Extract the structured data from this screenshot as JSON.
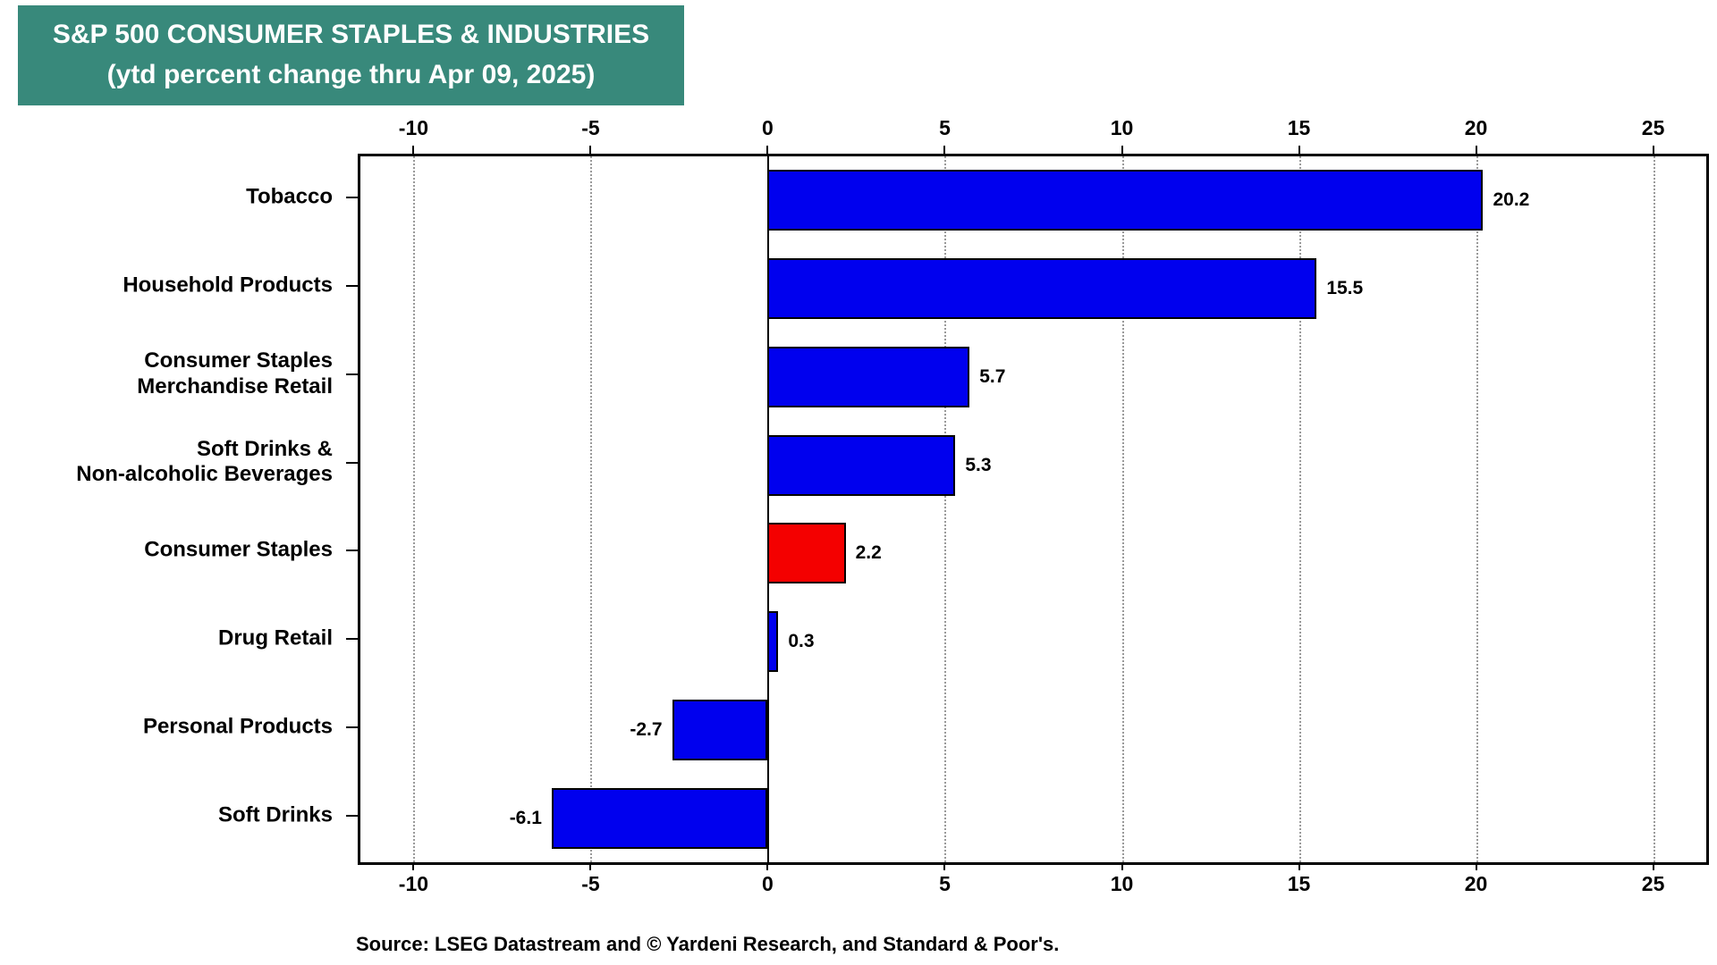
{
  "title": {
    "line1": "S&P 500 CONSUMER STAPLES & INDUSTRIES",
    "line2": "(ytd percent change thru Apr 09, 2025)"
  },
  "source": "Source: LSEG Datastream and © Yardeni Research, and Standard & Poor's.",
  "chart_data": {
    "type": "bar",
    "orientation": "horizontal",
    "title": "S&P 500 CONSUMER STAPLES & INDUSTRIES (ytd percent change thru Apr 09, 2025)",
    "categories": [
      "Tobacco",
      "Household Products",
      "Consumer Staples Merchandise Retail",
      "Soft Drinks & Non-alcoholic Beverages",
      "Consumer Staples",
      "Drug Retail",
      "Personal Products",
      "Soft Drinks"
    ],
    "category_lines": [
      [
        "Tobacco"
      ],
      [
        "Household Products"
      ],
      [
        "Consumer Staples",
        "Merchandise Retail"
      ],
      [
        "Soft Drinks &",
        "Non-alcoholic Beverages"
      ],
      [
        "Consumer Staples"
      ],
      [
        "Drug Retail"
      ],
      [
        "Personal Products"
      ],
      [
        "Soft Drinks"
      ]
    ],
    "values": [
      20.2,
      15.5,
      5.7,
      5.3,
      2.2,
      0.3,
      -2.7,
      -6.1
    ],
    "value_labels": [
      "20.2",
      "15.5",
      "5.7",
      "5.3",
      "2.2",
      "0.3",
      "-2.7",
      "-6.1"
    ],
    "bar_colors": [
      "#0000EE",
      "#0000EE",
      "#0000EE",
      "#0000EE",
      "#F40000",
      "#0000EE",
      "#0000EE",
      "#0000EE"
    ],
    "xlim": [
      -11.5,
      26.5
    ],
    "xticks": [
      -10,
      -5,
      0,
      5,
      10,
      15,
      20,
      25
    ],
    "xtick_labels": [
      "-10",
      "-5",
      "0",
      "5",
      "10",
      "15",
      "20",
      "25"
    ],
    "grid": "dotted-vertical",
    "zero_line": true,
    "legend": "none",
    "colors": {
      "bar_blue": "#0000EE",
      "bar_red": "#F40000",
      "title_bg": "#38897B",
      "grid": "#9a9a9a",
      "axis": "#000000"
    }
  }
}
